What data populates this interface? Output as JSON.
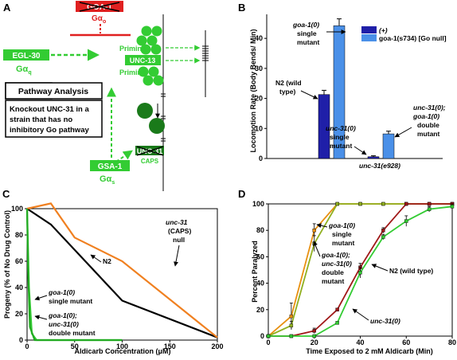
{
  "panels": {
    "A": {
      "letter": "A",
      "goa_label": "GOA-1",
      "goa_greek": "Gα",
      "goa_sub": "o",
      "egl30_label": "EGL-30",
      "egl30_greek": "Gα",
      "egl30_sub": "q",
      "pathway_title": "Pathway Analysis",
      "pathway_text": [
        "Knockout UNC-31 in a",
        "strain that has no",
        "inhibitory Go pathway"
      ],
      "priming_top": "Priming",
      "unc13": "UNC-13",
      "priming_bottom": "Priming",
      "unc31_crossed": "UNC-31",
      "caps": "CAPS",
      "gsa1_label": "GSA-1",
      "gsa1_greek": "Gα",
      "gsa1_sub": "s",
      "colors": {
        "green": "#33cc33",
        "dark_green": "#1a7a1a",
        "red": "#e02020"
      }
    },
    "B": {
      "letter": "B",
      "chart_data": {
        "type": "bar",
        "ylabel": "Locomotion Rate (Body Bends/ Min)",
        "ylim": [
          0,
          48
        ],
        "yticks": [
          0,
          10,
          20,
          30,
          40
        ],
        "legend": [
          {
            "name": "(+)",
            "color": "#1f1fa8"
          },
          {
            "name": "goa-1(s734) [Go null]",
            "color": "#4a90e8"
          }
        ],
        "groups": [
          {
            "xlabel": "",
            "bars": [
              {
                "series": "(+)",
                "value": 21.3,
                "error": 1.4,
                "color": "#1f1fa8"
              },
              {
                "series": "goa-1(s734) [Go null]",
                "value": 44.2,
                "error": 2.3,
                "color": "#4a90e8"
              }
            ]
          },
          {
            "xlabel": "unc-31(e928)",
            "bars": [
              {
                "series": "(+)",
                "value": 0.6,
                "error": 0.3,
                "color": "#1f1fa8"
              },
              {
                "series": "goa-1(s734) [Go null]",
                "value": 8.2,
                "error": 0.9,
                "color": "#4a90e8"
              }
            ]
          }
        ]
      },
      "annotations": {
        "goa_mutant": [
          "goa-1(0)",
          "single",
          "mutant"
        ],
        "n2": [
          "N2 (wild",
          "type)"
        ],
        "unc31_single": [
          "unc-31(0)",
          "single",
          "mutant"
        ],
        "double": [
          "unc-31(0);",
          "goa-1(0)",
          "double",
          "mutant"
        ]
      }
    },
    "C": {
      "letter": "C",
      "chart_data": {
        "type": "line",
        "xlabel": "Aldicarb Concentration (μM)",
        "ylabel": "Progeny (% of No Drug Control)",
        "xlim": [
          0,
          200
        ],
        "ylim": [
          0,
          100
        ],
        "xticks": [
          0,
          50,
          100,
          150,
          200
        ],
        "yticks": [
          0,
          20,
          40,
          60,
          80,
          100
        ],
        "series": [
          {
            "name": "N2",
            "color": "#000000",
            "x": [
              0,
              25,
              100,
              200
            ],
            "y": [
              100,
              88,
              30,
              2
            ]
          },
          {
            "name": "unc-31 (CAPS) null",
            "color": "#f08020",
            "x": [
              0,
              25,
              50,
              100,
              200
            ],
            "y": [
              100,
              104,
              78,
              60,
              2
            ]
          },
          {
            "name": "goa-1(0) single mutant",
            "color": "#33cc33",
            "x": [
              0,
              2,
              5,
              10,
              100
            ],
            "y": [
              100,
              40,
              5,
              0,
              0
            ]
          },
          {
            "name": "goa-1(0); unc-31(0) double mutant",
            "color": "#22aa22",
            "x": [
              0,
              1,
              3,
              8,
              100
            ],
            "y": [
              100,
              55,
              10,
              0,
              0
            ]
          }
        ]
      },
      "annotations": {
        "unc31": [
          "unc-31",
          "(CAPS)",
          "null"
        ],
        "n2": "N2",
        "goa": [
          "goa-1(0)",
          "single mutant"
        ],
        "double": [
          "goa-1(0);",
          "unc-31(0)",
          "double mutant"
        ]
      }
    },
    "D": {
      "letter": "D",
      "chart_data": {
        "type": "line",
        "xlabel": "Time Exposed to 2 mM Aldicarb (Min)",
        "ylabel": "Percent Paralyzed",
        "xlim": [
          0,
          80
        ],
        "ylim": [
          0,
          100
        ],
        "xticks": [
          0,
          20,
          40,
          60,
          80
        ],
        "yticks": [
          0,
          20,
          40,
          60,
          80,
          100
        ],
        "series": [
          {
            "name": "goa-1(0) single mutant",
            "color": "#e89010",
            "x": [
              0,
              10,
              20,
              30,
              40,
              50,
              60,
              70,
              80
            ],
            "y": [
              0,
              15,
              80,
              100,
              100,
              100,
              100,
              100,
              100
            ],
            "err": [
              0,
              10,
              5,
              0,
              0,
              0,
              0,
              0,
              0
            ]
          },
          {
            "name": "goa-1(0); unc-31(0) double mutant",
            "color": "#90b020",
            "x": [
              0,
              10,
              20,
              30,
              40,
              50,
              60,
              70,
              80
            ],
            "y": [
              0,
              8,
              70,
              100,
              100,
              100,
              100,
              100,
              100
            ],
            "err": [
              0,
              3,
              6,
              0,
              0,
              0,
              0,
              0,
              0
            ]
          },
          {
            "name": "N2 (wild type)",
            "color": "#a01818",
            "x": [
              0,
              10,
              20,
              30,
              40,
              50,
              60,
              70,
              80
            ],
            "y": [
              0,
              0,
              4,
              20,
              52,
              80,
              100,
              100,
              100
            ],
            "err": [
              0,
              0,
              2,
              1,
              3,
              2,
              0,
              0,
              0
            ]
          },
          {
            "name": "unc-31(0)",
            "color": "#33cc33",
            "x": [
              0,
              10,
              20,
              30,
              40,
              50,
              60,
              70,
              80
            ],
            "y": [
              0,
              0,
              0,
              10,
              48,
              75,
              87,
              96,
              98
            ],
            "err": [
              0,
              0,
              1,
              1,
              4,
              2,
              4,
              2,
              2
            ]
          }
        ]
      },
      "annotations": {
        "goa": [
          "goa-1(0)",
          "single",
          "mutant"
        ],
        "double": [
          "goa-1(0);",
          "unc-31(0)",
          "double",
          "mutant"
        ],
        "n2": "N2 (wild type)",
        "unc31": "unc-31(0)"
      }
    }
  }
}
